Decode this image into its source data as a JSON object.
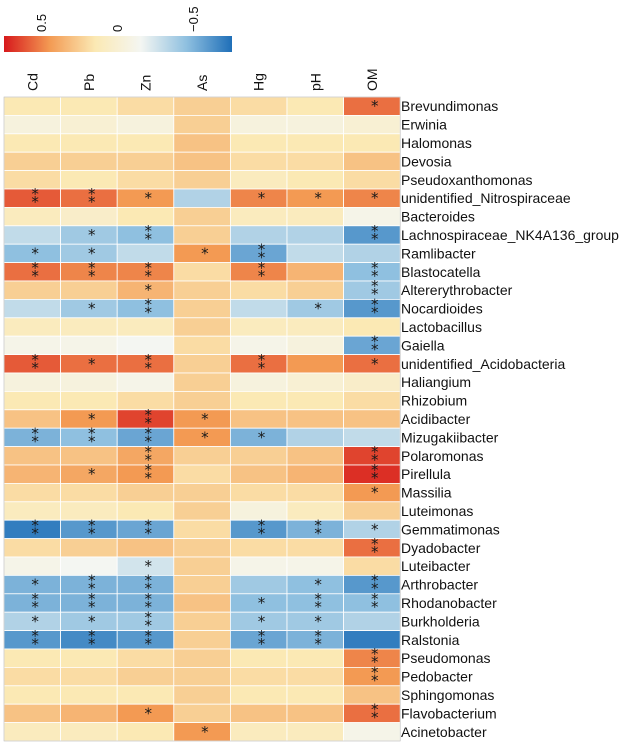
{
  "chart_data": {
    "type": "heatmap",
    "title": "",
    "legend": {
      "position": "top-left",
      "ticks": [
        {
          "label": "0.5",
          "value": 0.5
        },
        {
          "label": "0",
          "value": 0
        },
        {
          "label": "−0.5",
          "value": -0.5
        }
      ],
      "range": [
        0.75,
        -0.75
      ],
      "colors": [
        "#d7191c",
        "#f39a53",
        "#fbe9b4",
        "#f4f6f2",
        "#8fc0e0",
        "#1f6fb8"
      ]
    },
    "columns": [
      "Cd",
      "Pb",
      "Zn",
      "As",
      "Hg",
      "pH",
      "OM"
    ],
    "rows": [
      "Brevundimonas",
      "Erwinia",
      "Halomonas",
      "Devosia",
      "Pseudoxanthomonas",
      "unidentified_Nitrospiraceae",
      "Bacteroides",
      "Lachnospiraceae_NK4A136_group",
      "Ramlibacter",
      "Blastocatella",
      "Altererythrobacter",
      "Nocardioides",
      "Lactobacillus",
      "Gaiella",
      "unidentified_Acidobacteria",
      "Haliangium",
      "Rhizobium",
      "Acidibacter",
      "Mizugakiibacter",
      "Polaromonas",
      "Pirellula",
      "Massilia",
      "Luteimonas",
      "Gemmatimonas",
      "Dyadobacter",
      "Luteibacter",
      "Arthrobacter",
      "Rhodanobacter",
      "Burkholderia",
      "Ralstonia",
      "Pseudomonas",
      "Pedobacter",
      "Sphingomonas",
      "Flavobacterium",
      "Acinetobacter"
    ],
    "values": [
      [
        0.15,
        0.15,
        0.2,
        0.25,
        0.2,
        0.15,
        0.55
      ],
      [
        -0.05,
        0,
        -0.05,
        0.25,
        -0.05,
        -0.05,
        0
      ],
      [
        0.15,
        0.15,
        0.15,
        0.3,
        0.15,
        0.15,
        0.15
      ],
      [
        0.25,
        0.25,
        0.25,
        0.3,
        0.2,
        0.2,
        0.3
      ],
      [
        0.2,
        0.15,
        0.2,
        0.25,
        0.1,
        0.15,
        0.2
      ],
      [
        0.6,
        0.55,
        0.45,
        -0.35,
        0.5,
        0.45,
        0.5
      ],
      [
        0.1,
        0.05,
        0.15,
        0.25,
        0.1,
        0.1,
        -0.1
      ],
      [
        -0.3,
        -0.4,
        -0.45,
        0.25,
        -0.35,
        -0.35,
        -0.6
      ],
      [
        -0.45,
        -0.4,
        -0.3,
        0.45,
        -0.55,
        -0.3,
        -0.35
      ],
      [
        0.55,
        0.5,
        0.5,
        0.2,
        0.5,
        0.35,
        -0.45
      ],
      [
        0.25,
        0.25,
        0.35,
        0.25,
        0.2,
        0.25,
        -0.4
      ],
      [
        -0.3,
        -0.4,
        -0.45,
        0.25,
        -0.3,
        -0.4,
        -0.6
      ],
      [
        0.1,
        0.1,
        0.1,
        0.25,
        0.1,
        0.1,
        0.15
      ],
      [
        -0.1,
        -0.1,
        -0.15,
        0.2,
        -0.1,
        -0.05,
        -0.55
      ],
      [
        0.6,
        0.55,
        0.55,
        0.25,
        0.55,
        0.45,
        0.55
      ],
      [
        -0.05,
        -0.05,
        -0.1,
        0.25,
        -0.05,
        0,
        0.05
      ],
      [
        0.15,
        0.15,
        0.2,
        0.25,
        0.15,
        0.15,
        0.2
      ],
      [
        0.3,
        0.45,
        0.65,
        0.45,
        0.3,
        0.3,
        0.3
      ],
      [
        -0.5,
        -0.45,
        -0.55,
        0.45,
        -0.5,
        -0.35,
        -0.3
      ],
      [
        0.3,
        0.3,
        0.4,
        0.25,
        0.25,
        0.3,
        0.65
      ],
      [
        0.35,
        0.4,
        0.45,
        0.2,
        0.3,
        0.35,
        0.7
      ],
      [
        0.2,
        0.2,
        0.25,
        0.25,
        0.2,
        0.2,
        0.45
      ],
      [
        0.1,
        0.1,
        0.15,
        0.25,
        -0.05,
        0.1,
        0.25
      ],
      [
        -0.7,
        -0.6,
        -0.55,
        0.2,
        -0.6,
        -0.5,
        -0.35
      ],
      [
        0.2,
        0.25,
        0.3,
        0.25,
        0.2,
        0.2,
        0.55
      ],
      [
        -0.1,
        -0.15,
        -0.25,
        0.25,
        -0.1,
        -0.1,
        0.2
      ],
      [
        -0.5,
        -0.5,
        -0.5,
        0.25,
        -0.4,
        -0.45,
        -0.6
      ],
      [
        -0.5,
        -0.5,
        -0.5,
        0.3,
        -0.45,
        -0.45,
        -0.45
      ],
      [
        -0.35,
        -0.4,
        -0.4,
        0.25,
        -0.4,
        -0.4,
        -0.35
      ],
      [
        -0.6,
        -0.65,
        -0.6,
        0.25,
        -0.55,
        -0.5,
        -0.7
      ],
      [
        0.15,
        0.15,
        0.2,
        0.25,
        0.15,
        0.15,
        0.5
      ],
      [
        0.2,
        0.2,
        0.25,
        0.25,
        0.2,
        0.2,
        0.45
      ],
      [
        0.15,
        0.15,
        0.15,
        0.25,
        0.15,
        0.15,
        0.3
      ],
      [
        0.3,
        0.35,
        0.45,
        0.25,
        0.3,
        0.3,
        0.55
      ],
      [
        0.1,
        0.1,
        0.15,
        0.45,
        0.1,
        0.1,
        -0.1
      ]
    ],
    "significance": [
      [
        0,
        0,
        0,
        0,
        0,
        0,
        1
      ],
      [
        0,
        0,
        0,
        0,
        0,
        0,
        0
      ],
      [
        0,
        0,
        0,
        0,
        0,
        0,
        0
      ],
      [
        0,
        0,
        0,
        0,
        0,
        0,
        0
      ],
      [
        0,
        0,
        0,
        0,
        0,
        0,
        0
      ],
      [
        2,
        2,
        1,
        0,
        1,
        1,
        1
      ],
      [
        0,
        0,
        0,
        0,
        0,
        0,
        0
      ],
      [
        0,
        1,
        2,
        0,
        0,
        0,
        2
      ],
      [
        1,
        1,
        0,
        1,
        2,
        0,
        0
      ],
      [
        2,
        2,
        2,
        0,
        2,
        0,
        2
      ],
      [
        0,
        0,
        1,
        0,
        0,
        0,
        2
      ],
      [
        0,
        1,
        2,
        0,
        0,
        1,
        2
      ],
      [
        0,
        0,
        0,
        0,
        0,
        0,
        0
      ],
      [
        0,
        0,
        0,
        0,
        0,
        0,
        2
      ],
      [
        2,
        1,
        2,
        0,
        2,
        0,
        1
      ],
      [
        0,
        0,
        0,
        0,
        0,
        0,
        0
      ],
      [
        0,
        0,
        0,
        0,
        0,
        0,
        0
      ],
      [
        0,
        1,
        2,
        1,
        0,
        0,
        0
      ],
      [
        2,
        2,
        2,
        1,
        1,
        0,
        0
      ],
      [
        0,
        0,
        2,
        0,
        0,
        0,
        2
      ],
      [
        0,
        1,
        2,
        0,
        0,
        0,
        2
      ],
      [
        0,
        0,
        0,
        0,
        0,
        0,
        1
      ],
      [
        0,
        0,
        0,
        0,
        0,
        0,
        0
      ],
      [
        2,
        2,
        2,
        0,
        2,
        2,
        1
      ],
      [
        0,
        0,
        0,
        0,
        0,
        0,
        2
      ],
      [
        0,
        0,
        1,
        0,
        0,
        0,
        0
      ],
      [
        1,
        2,
        2,
        0,
        0,
        1,
        2
      ],
      [
        2,
        2,
        2,
        0,
        1,
        2,
        2
      ],
      [
        1,
        1,
        2,
        0,
        1,
        1,
        0
      ],
      [
        2,
        2,
        2,
        0,
        2,
        2,
        0
      ],
      [
        0,
        0,
        0,
        0,
        0,
        0,
        2
      ],
      [
        0,
        0,
        0,
        0,
        0,
        0,
        2
      ],
      [
        0,
        0,
        0,
        0,
        0,
        0,
        0
      ],
      [
        0,
        0,
        1,
        0,
        0,
        0,
        2
      ],
      [
        0,
        0,
        0,
        1,
        0,
        0,
        0
      ]
    ],
    "significance_marker": "*"
  }
}
